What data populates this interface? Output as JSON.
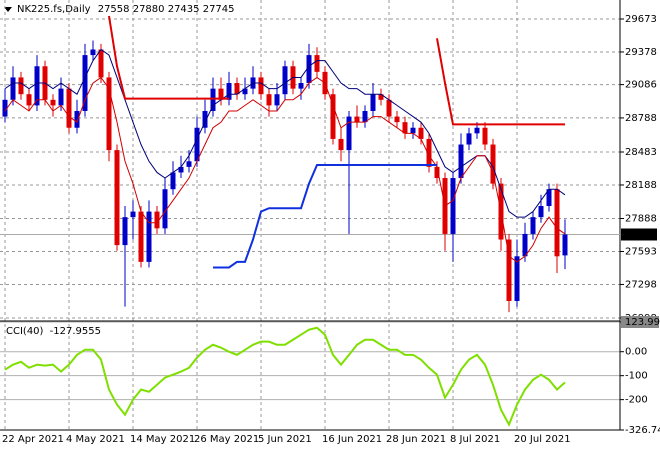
{
  "chart_data": [
    {
      "type": "candlestick",
      "title": "NK225.fs,Daily",
      "categories": [
        "22 Apr 2021",
        null,
        null,
        null,
        null,
        null,
        null,
        null,
        "4 May 2021",
        null,
        null,
        null,
        null,
        null,
        null,
        null,
        "14 May 2021",
        null,
        null,
        null,
        null,
        null,
        null,
        null,
        "26 May 2021",
        null,
        null,
        null,
        null,
        null,
        null,
        null,
        "5 Jun 2021",
        null,
        null,
        null,
        null,
        null,
        null,
        null,
        "16 Jun 2021",
        null,
        null,
        null,
        null,
        null,
        null,
        null,
        "28 Jun 2021",
        null,
        null,
        null,
        null,
        null,
        null,
        null,
        "8 Jul 2021",
        null,
        null,
        null,
        null,
        null,
        null,
        null,
        "20 Jul 2021",
        null,
        null,
        null,
        null,
        null,
        null
      ],
      "open": [
        28800,
        28950,
        29150,
        29000,
        28900,
        29250,
        28950,
        28900,
        29050,
        28700,
        28850,
        29350,
        29400,
        29150,
        28500,
        27650,
        27900,
        27950,
        27500,
        27950,
        27800,
        28150,
        28300,
        28350,
        28400,
        28700,
        28850,
        29050,
        28950,
        29100,
        29000,
        29050,
        29150,
        29000,
        28900,
        29000,
        29250,
        29050,
        29100,
        29350,
        29200,
        29000,
        28600,
        28500,
        28800,
        28750,
        28850,
        29000,
        28950,
        28800,
        28750,
        28650,
        28700,
        28600,
        28350,
        28250,
        27750,
        28250,
        28550,
        28650,
        28700,
        28550,
        28200,
        27700,
        27150,
        27550,
        27750,
        27900,
        28000,
        28150,
        27558
      ],
      "high": [
        29050,
        29250,
        29200,
        29050,
        29350,
        29300,
        29000,
        29150,
        29100,
        28950,
        29450,
        29480,
        29450,
        29200,
        28550,
        28000,
        28050,
        28000,
        28050,
        28000,
        28250,
        28400,
        28450,
        28500,
        28800,
        28950,
        29150,
        29150,
        29200,
        29150,
        29150,
        29250,
        29200,
        29050,
        29100,
        29300,
        29300,
        29150,
        29450,
        29420,
        29250,
        29050,
        28700,
        28850,
        28900,
        28900,
        29100,
        29050,
        29000,
        28850,
        28800,
        28750,
        28750,
        28650,
        28400,
        28300,
        28300,
        28650,
        28700,
        28750,
        28750,
        28600,
        28250,
        27750,
        27700,
        27850,
        27950,
        28100,
        28200,
        28200,
        27880
      ],
      "low": [
        28750,
        28900,
        28950,
        28850,
        28850,
        28900,
        28800,
        28850,
        28650,
        28650,
        28800,
        29300,
        29100,
        28400,
        27600,
        27100,
        27700,
        27450,
        27450,
        27750,
        27750,
        28100,
        28250,
        28300,
        28350,
        28650,
        28800,
        28900,
        28900,
        28950,
        28950,
        29000,
        28950,
        28800,
        28850,
        28950,
        29000,
        28950,
        29050,
        29150,
        28950,
        28550,
        28400,
        27750,
        28700,
        28700,
        28800,
        28900,
        28750,
        28700,
        28600,
        28600,
        28550,
        28300,
        28200,
        27600,
        27500,
        28200,
        28500,
        28600,
        28500,
        28150,
        27600,
        27050,
        27100,
        27500,
        27700,
        27850,
        27950,
        27400,
        27435
      ],
      "close": [
        28950,
        29150,
        29000,
        28900,
        29250,
        28950,
        28900,
        29050,
        28700,
        28850,
        29350,
        29400,
        29150,
        28500,
        27650,
        27900,
        27950,
        27500,
        27950,
        27800,
        28150,
        28300,
        28350,
        28400,
        28700,
        28850,
        29050,
        28950,
        29100,
        29000,
        29050,
        29150,
        29000,
        28900,
        29000,
        29250,
        29050,
        29100,
        29350,
        29200,
        29000,
        28600,
        28500,
        28800,
        28750,
        28850,
        29000,
        28950,
        28800,
        28750,
        28650,
        28700,
        28600,
        28350,
        28250,
        27750,
        28250,
        28550,
        28650,
        28700,
        28550,
        28200,
        27700,
        27150,
        27550,
        27750,
        27900,
        28000,
        28150,
        27550,
        27745
      ],
      "up_color": "#0000c8",
      "down_color": "#e00000",
      "overlays": [
        {
          "color": "#00007a",
          "width": 1,
          "values": [
            29050,
            29100,
            29100,
            29050,
            29100,
            29100,
            29050,
            29100,
            29050,
            29000,
            29150,
            29300,
            29400,
            29350,
            29150,
            28950,
            28750,
            28550,
            28400,
            28300,
            28250,
            28300,
            28350,
            28450,
            28600,
            28750,
            28900,
            28950,
            29000,
            29000,
            29050,
            29100,
            29100,
            29050,
            29050,
            29100,
            29150,
            29150,
            29250,
            29300,
            29300,
            29200,
            29100,
            29050,
            29050,
            29000,
            29000,
            29000,
            28950,
            28900,
            28850,
            28800,
            28750,
            28650,
            28500,
            28350,
            28300,
            28350,
            28400,
            28450,
            28450,
            28350,
            28150,
            27950,
            27900,
            27900,
            27950,
            28050,
            28150,
            28150,
            28100
          ]
        },
        {
          "color": "#d00000",
          "width": 1,
          "values": [
            28850,
            28950,
            28900,
            28850,
            28950,
            28950,
            28850,
            28900,
            28800,
            28750,
            28950,
            29100,
            29150,
            29050,
            28750,
            28400,
            28200,
            27950,
            27850,
            27850,
            27950,
            28050,
            28150,
            28250,
            28400,
            28550,
            28700,
            28750,
            28850,
            28850,
            28900,
            28950,
            28900,
            28850,
            28850,
            28950,
            28950,
            29000,
            29100,
            29150,
            29100,
            28900,
            28700,
            28750,
            28750,
            28750,
            28800,
            28800,
            28750,
            28700,
            28650,
            28650,
            28600,
            28450,
            28350,
            28000,
            28050,
            28250,
            28350,
            28450,
            28450,
            28300,
            27950,
            27550,
            27500,
            27550,
            27650,
            27800,
            27900,
            27800,
            27750
          ]
        },
        {
          "color": "#e00000",
          "width": 2,
          "values": [
            null,
            null,
            null,
            null,
            null,
            null,
            null,
            null,
            null,
            null,
            null,
            null,
            null,
            29700,
            29250,
            28960,
            28960,
            28960,
            28960,
            28960,
            28960,
            28960,
            28960,
            28960,
            28960,
            28960,
            28960,
            28960,
            28960,
            null,
            null,
            null,
            null,
            null,
            null,
            null,
            null,
            null,
            null,
            null,
            null,
            null,
            null,
            null,
            null,
            null,
            null,
            null,
            null,
            null,
            null,
            null,
            null,
            null,
            29500,
            29100,
            28730,
            28730,
            28730,
            28730,
            28730,
            28730,
            28730,
            28730,
            28730,
            28730,
            28730,
            28730,
            28730,
            28730,
            28730
          ]
        },
        {
          "color": "#1030e0",
          "width": 2,
          "values": [
            null,
            null,
            null,
            null,
            null,
            null,
            null,
            null,
            null,
            null,
            null,
            null,
            null,
            null,
            null,
            null,
            null,
            null,
            null,
            null,
            null,
            null,
            null,
            null,
            null,
            null,
            27450,
            27450,
            27450,
            27500,
            27500,
            27700,
            27950,
            27980,
            27980,
            27980,
            27980,
            27980,
            28200,
            28367,
            28367,
            28367,
            28367,
            28367,
            28367,
            28367,
            28367,
            28367,
            28367,
            28367,
            28367,
            28367,
            28367,
            28367,
            28367,
            null,
            null,
            null,
            null,
            null,
            null,
            null,
            null,
            null,
            null,
            null,
            null,
            null,
            null,
            null,
            null
          ]
        }
      ],
      "ylim": [
        26980,
        29825
      ],
      "yticks": [
        29673,
        29378,
        29086,
        28788,
        28483,
        28188,
        27888,
        27593,
        27298,
        26998
      ],
      "grid": true
    },
    {
      "type": "line",
      "title": "CCI(40)",
      "color": "#7fdf00",
      "values": [
        -75,
        -54,
        -42,
        -67,
        -54,
        -58,
        -54,
        -83,
        -54,
        -13,
        8,
        8,
        -33,
        -158,
        -221,
        -263,
        -200,
        -158,
        -167,
        -138,
        -108,
        -96,
        -83,
        -67,
        -25,
        8,
        29,
        17,
        0,
        -13,
        8,
        29,
        42,
        42,
        29,
        29,
        50,
        71,
        92,
        100,
        71,
        -13,
        -54,
        -13,
        29,
        50,
        50,
        29,
        8,
        8,
        -13,
        -13,
        -33,
        -67,
        -96,
        -192,
        -138,
        -75,
        -33,
        -13,
        -54,
        -138,
        -242,
        -304,
        -221,
        -158,
        -117,
        -96,
        -117,
        -158,
        -127.9555
      ],
      "ylim": [
        -326.744,
        123.9967
      ],
      "yticks": [
        123.9967,
        {
          "value": 0,
          "label": "0.00"
        },
        -100,
        -200,
        -326.744
      ]
    }
  ]
}
